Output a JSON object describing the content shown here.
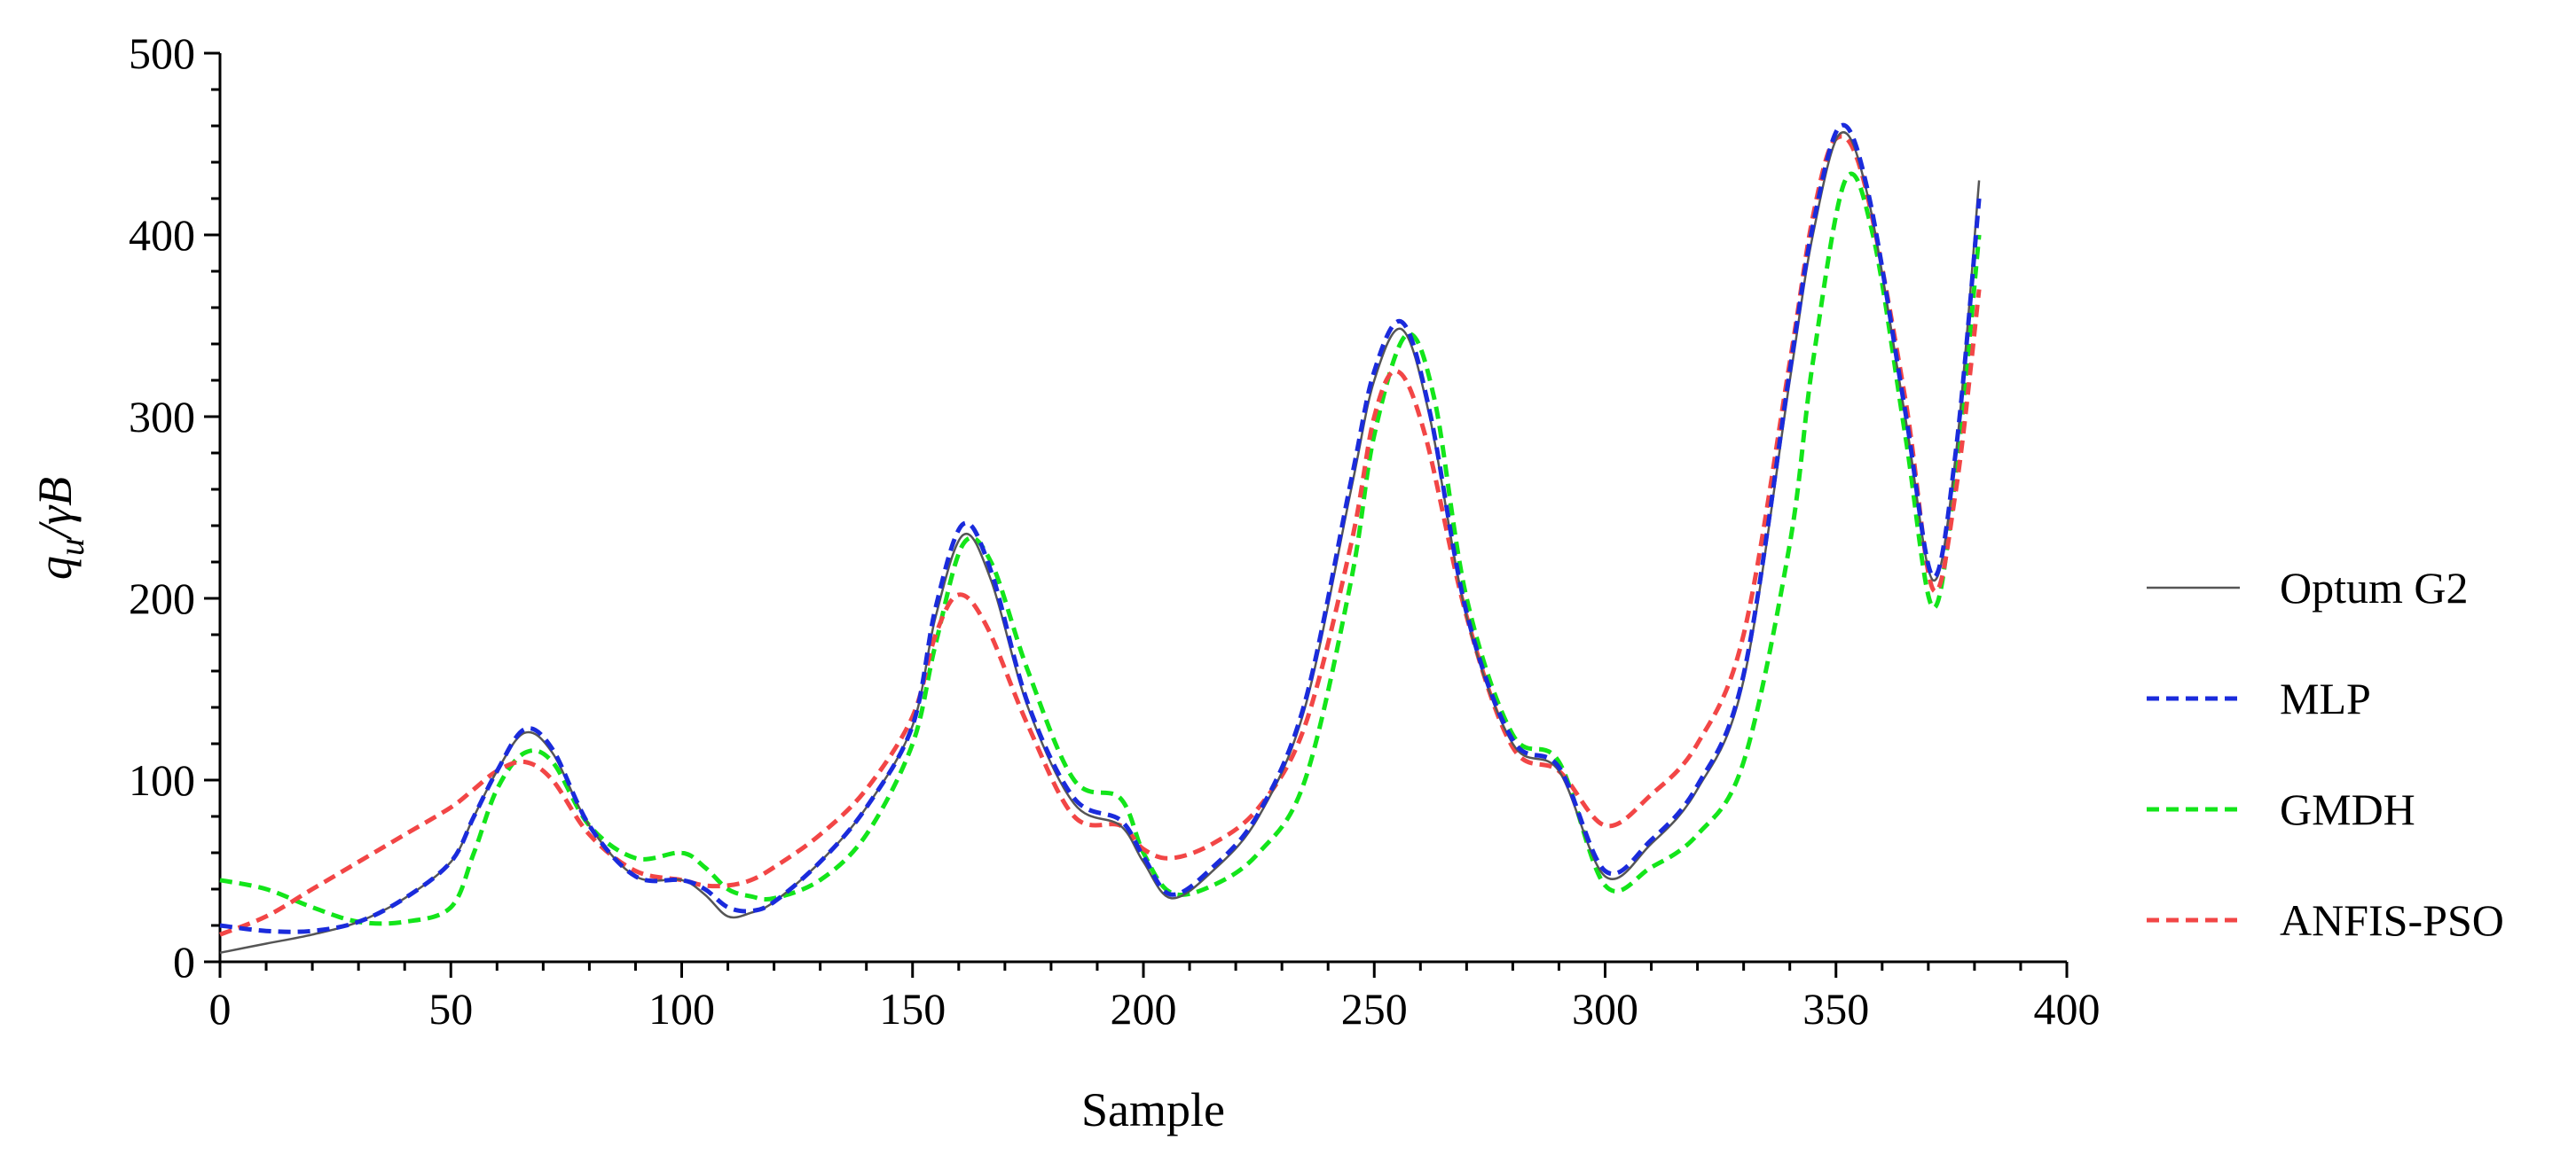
{
  "chart_data": {
    "type": "line",
    "title": "",
    "xlabel": "Sample",
    "ylabel_parts": {
      "q": "q",
      "sub": "u",
      "rest": "/γB"
    },
    "xlim": [
      0,
      400
    ],
    "ylim": [
      0,
      500
    ],
    "xticks": [
      0,
      50,
      100,
      150,
      200,
      250,
      300,
      350,
      400
    ],
    "yticks": [
      0,
      100,
      200,
      300,
      400,
      500
    ],
    "grid": false,
    "legend_position": "right",
    "series": [
      {
        "name": "Optum G2",
        "color": "#555555",
        "style": "solid",
        "x": [
          0,
          10,
          20,
          30,
          40,
          50,
          55,
          60,
          66,
          72,
          80,
          90,
          100,
          105,
          110,
          115,
          120,
          130,
          140,
          150,
          155,
          161,
          167,
          175,
          185,
          195,
          200,
          206,
          215,
          225,
          235,
          245,
          250,
          256,
          262,
          270,
          280,
          290,
          300,
          310,
          320,
          330,
          340,
          345,
          351,
          357,
          365,
          371,
          376,
          381
        ],
        "y": [
          5,
          10,
          15,
          22,
          35,
          55,
          80,
          105,
          126,
          115,
          75,
          47,
          45,
          37,
          25,
          27,
          33,
          55,
          85,
          130,
          190,
          235,
          210,
          140,
          87,
          75,
          55,
          35,
          50,
          80,
          140,
          260,
          320,
          348,
          300,
          190,
          120,
          105,
          47,
          65,
          95,
          155,
          320,
          400,
          456,
          420,
          300,
          210,
          280,
          430
        ]
      },
      {
        "name": "MLP",
        "color": "#1a2bdc",
        "style": "dashed",
        "x": [
          0,
          10,
          20,
          30,
          40,
          50,
          55,
          60,
          66,
          72,
          80,
          90,
          100,
          105,
          110,
          115,
          120,
          130,
          140,
          150,
          155,
          161,
          167,
          175,
          185,
          195,
          200,
          206,
          215,
          225,
          235,
          245,
          250,
          256,
          262,
          270,
          280,
          290,
          300,
          310,
          320,
          330,
          340,
          345,
          351,
          357,
          365,
          371,
          376,
          381
        ],
        "y": [
          20,
          17,
          17,
          22,
          35,
          55,
          80,
          105,
          128,
          117,
          75,
          47,
          45,
          40,
          30,
          28,
          33,
          55,
          85,
          130,
          195,
          241,
          215,
          142,
          90,
          78,
          58,
          37,
          52,
          82,
          143,
          265,
          325,
          352,
          303,
          192,
          122,
          107,
          50,
          67,
          97,
          158,
          325,
          405,
          460,
          423,
          303,
          212,
          282,
          420
        ]
      },
      {
        "name": "GMDH",
        "color": "#13e51a",
        "style": "dashed",
        "x": [
          0,
          10,
          20,
          30,
          40,
          50,
          55,
          60,
          66,
          72,
          80,
          90,
          100,
          105,
          110,
          115,
          120,
          130,
          140,
          150,
          155,
          161,
          167,
          175,
          185,
          195,
          200,
          206,
          215,
          225,
          235,
          245,
          250,
          257,
          263,
          270,
          280,
          290,
          300,
          310,
          320,
          330,
          340,
          345,
          352,
          358,
          365,
          371,
          376,
          381
        ],
        "y": [
          45,
          40,
          30,
          22,
          22,
          30,
          60,
          95,
          115,
          110,
          75,
          57,
          60,
          52,
          40,
          36,
          35,
          45,
          70,
          120,
          175,
          230,
          220,
          160,
          100,
          90,
          60,
          38,
          42,
          60,
          100,
          210,
          290,
          345,
          310,
          200,
          125,
          110,
          42,
          52,
          70,
          110,
          230,
          330,
          430,
          400,
          290,
          195,
          270,
          400
        ]
      },
      {
        "name": "ANFIS-PSO",
        "color": "#f24646",
        "style": "dashed",
        "x": [
          0,
          10,
          20,
          30,
          40,
          50,
          55,
          60,
          66,
          72,
          80,
          90,
          100,
          105,
          110,
          115,
          120,
          130,
          140,
          150,
          155,
          160,
          166,
          175,
          185,
          195,
          200,
          206,
          215,
          225,
          235,
          245,
          250,
          255,
          261,
          270,
          280,
          290,
          300,
          310,
          320,
          330,
          340,
          345,
          350,
          356,
          365,
          371,
          376,
          381
        ],
        "y": [
          15,
          25,
          40,
          55,
          70,
          85,
          95,
          105,
          110,
          100,
          70,
          50,
          45,
          42,
          42,
          45,
          52,
          70,
          95,
          135,
          180,
          202,
          185,
          130,
          80,
          75,
          62,
          57,
          65,
          85,
          130,
          230,
          300,
          325,
          290,
          190,
          118,
          105,
          75,
          92,
          120,
          180,
          330,
          410,
          453,
          430,
          310,
          205,
          260,
          370
        ]
      }
    ]
  }
}
